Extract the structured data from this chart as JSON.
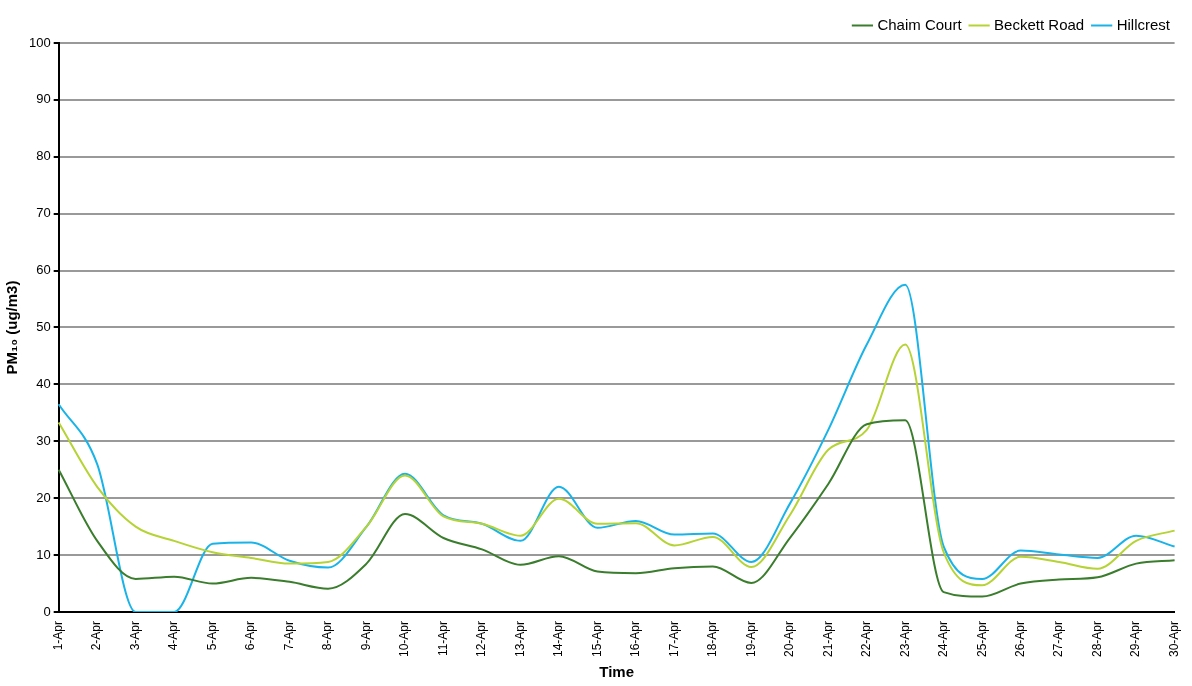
{
  "chart_data": {
    "type": "line",
    "xlabel": "Time",
    "ylabel": "PM₁₀ (ug/m3)",
    "categories": [
      "1-Apr",
      "2-Apr",
      "3-Apr",
      "4-Apr",
      "5-Apr",
      "6-Apr",
      "7-Apr",
      "8-Apr",
      "9-Apr",
      "10-Apr",
      "11-Apr",
      "12-Apr",
      "13-Apr",
      "14-Apr",
      "15-Apr",
      "16-Apr",
      "17-Apr",
      "18-Apr",
      "19-Apr",
      "20-Apr",
      "21-Apr",
      "22-Apr",
      "23-Apr",
      "24-Apr",
      "25-Apr",
      "26-Apr",
      "27-Apr",
      "28-Apr",
      "29-Apr",
      "30-Apr"
    ],
    "series": [
      {
        "name": "Chaim Court",
        "color": "#3a7d2c",
        "values": [
          25,
          12.5,
          5.8,
          6.2,
          5,
          6,
          5.3,
          4.1,
          8.5,
          17.2,
          13,
          11,
          8.3,
          9.8,
          7.1,
          6.8,
          7.7,
          8,
          5.1,
          13,
          22.5,
          33,
          33.7,
          3.5,
          2.7,
          5,
          5.7,
          6.1,
          8.5,
          9.1
        ]
      },
      {
        "name": "Beckett Road",
        "color": "#b5d334",
        "values": [
          33.3,
          22,
          15,
          12.5,
          10.5,
          9.5,
          8.5,
          8.8,
          15,
          24,
          16.8,
          15.5,
          13.4,
          19.9,
          15.5,
          15.6,
          11.7,
          13.2,
          7.9,
          17,
          28.5,
          32,
          47,
          10.5,
          4.7,
          9.7,
          8.8,
          7.6,
          12.5,
          14.3
        ]
      },
      {
        "name": "Hillcrest",
        "color": "#1ab3e8",
        "values": [
          36.5,
          26,
          0,
          0,
          12,
          12.2,
          9,
          7.8,
          15,
          24.3,
          17,
          15.5,
          12.5,
          22,
          14.8,
          16,
          13.6,
          13.8,
          8.8,
          19,
          32,
          47,
          57.5,
          11.5,
          5.8,
          10.8,
          10.1,
          9.5,
          13.4,
          11.5
        ]
      }
    ],
    "ylim": [
      0,
      100
    ],
    "yticks": [
      0,
      10,
      20,
      30,
      40,
      50,
      60,
      70,
      80,
      90,
      100
    ],
    "grid": "y",
    "legend": "top right",
    "marker": "none",
    "line_style": "solid"
  }
}
